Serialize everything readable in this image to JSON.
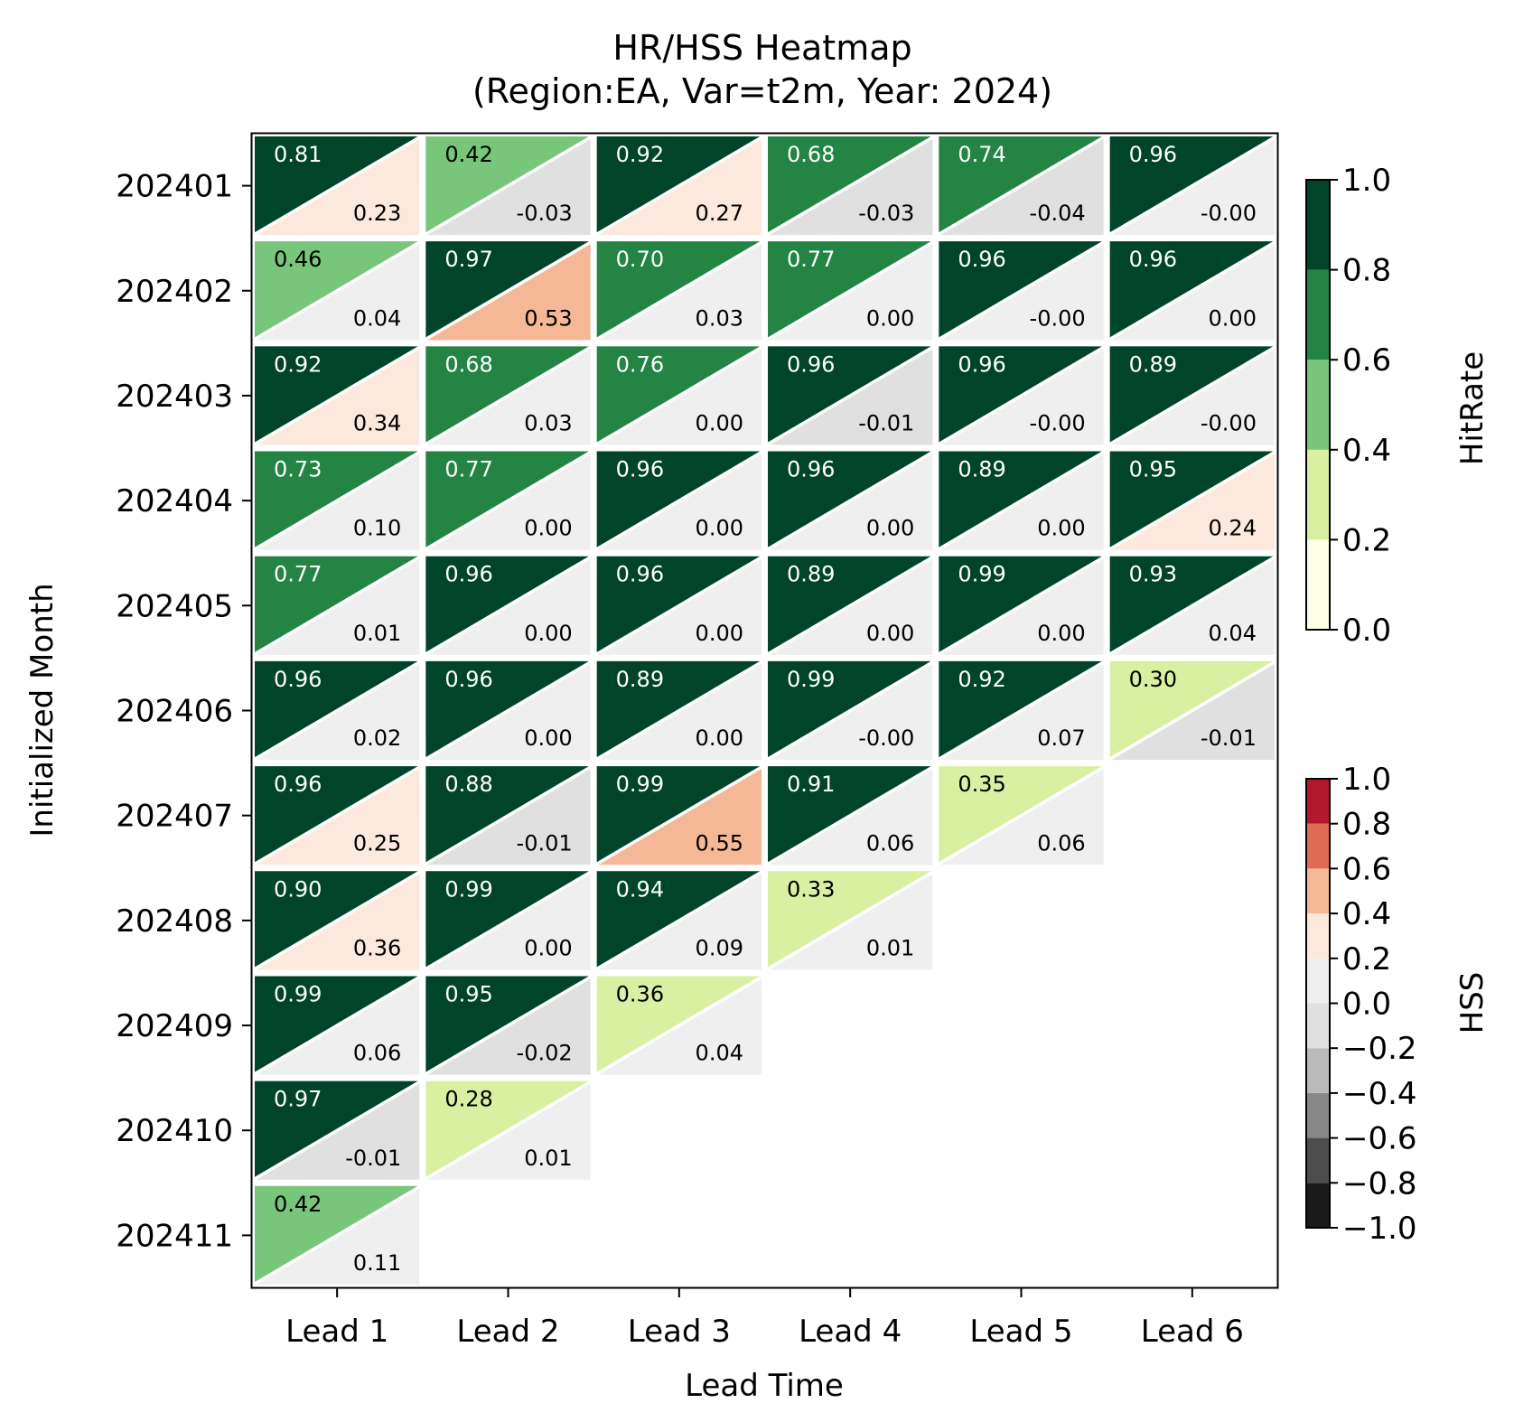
{
  "chart_data": {
    "type": "heatmap",
    "title": "HR/HSS Heatmap",
    "subtitle": "(Region:EA, Var=t2m, Year: 2024)",
    "xlabel": "Lead Time",
    "ylabel": "Initialized Month",
    "x_categories": [
      "Lead 1",
      "Lead 2",
      "Lead 3",
      "Lead 4",
      "Lead 5",
      "Lead 6"
    ],
    "y_categories": [
      "202401",
      "202402",
      "202403",
      "202404",
      "202405",
      "202406",
      "202407",
      "202408",
      "202409",
      "202410",
      "202411"
    ],
    "hitrate": [
      [
        0.81,
        0.42,
        0.92,
        0.68,
        0.74,
        0.96
      ],
      [
        0.46,
        0.97,
        0.7,
        0.77,
        0.96,
        0.96
      ],
      [
        0.92,
        0.68,
        0.76,
        0.96,
        0.96,
        0.89
      ],
      [
        0.73,
        0.77,
        0.96,
        0.96,
        0.89,
        0.95
      ],
      [
        0.77,
        0.96,
        0.96,
        0.89,
        0.99,
        0.93
      ],
      [
        0.96,
        0.96,
        0.89,
        0.99,
        0.92,
        0.3
      ],
      [
        0.96,
        0.88,
        0.99,
        0.91,
        0.35,
        null
      ],
      [
        0.9,
        0.99,
        0.94,
        0.33,
        null,
        null
      ],
      [
        0.99,
        0.95,
        0.36,
        null,
        null,
        null
      ],
      [
        0.97,
        0.28,
        null,
        null,
        null,
        null
      ],
      [
        0.42,
        null,
        null,
        null,
        null,
        null
      ]
    ],
    "hss_labels": [
      [
        "0.23",
        "-0.03",
        "0.27",
        "-0.03",
        "-0.04",
        "-0.00"
      ],
      [
        "0.04",
        "0.53",
        "0.03",
        "0.00",
        "-0.00",
        "0.00"
      ],
      [
        "0.34",
        "0.03",
        "0.00",
        "-0.01",
        "-0.00",
        "-0.00"
      ],
      [
        "0.10",
        "0.00",
        "0.00",
        "0.00",
        "0.00",
        "0.24"
      ],
      [
        "0.01",
        "0.00",
        "0.00",
        "0.00",
        "0.00",
        "0.04"
      ],
      [
        "0.02",
        "0.00",
        "0.00",
        "-0.00",
        "0.07",
        "-0.01"
      ],
      [
        "0.25",
        "-0.01",
        "0.55",
        "0.06",
        "0.06",
        null
      ],
      [
        "0.36",
        "0.00",
        "0.09",
        "0.01",
        null,
        null
      ],
      [
        "0.06",
        "-0.02",
        "0.04",
        null,
        null,
        null
      ],
      [
        "-0.01",
        "0.01",
        null,
        null,
        null,
        null
      ],
      [
        "0.11",
        null,
        null,
        null,
        null,
        null
      ]
    ],
    "colorbars": [
      {
        "label": "HitRate",
        "range": [
          0.0,
          1.0
        ],
        "ticks": [
          "0.0",
          "0.2",
          "0.4",
          "0.6",
          "0.8",
          "1.0"
        ],
        "bounds": [
          0.0,
          0.2,
          0.4,
          0.6,
          0.8,
          1.0
        ],
        "colors": [
          "#ffffe5",
          "#d9f0a3",
          "#78c679",
          "#238443",
          "#004529"
        ]
      },
      {
        "label": "HSS",
        "range": [
          -1.0,
          1.0
        ],
        "ticks": [
          "−1.0",
          "−0.8",
          "−0.6",
          "−0.4",
          "−0.2",
          "0.0",
          "0.2",
          "0.4",
          "0.6",
          "0.8",
          "1.0"
        ],
        "bounds": [
          -1.0,
          -0.8,
          -0.6,
          -0.4,
          -0.2,
          0.0,
          0.2,
          0.4,
          0.6,
          0.8,
          1.0
        ],
        "colors": [
          "#1a1a1a",
          "#4d4d4d",
          "#878787",
          "#bababa",
          "#e0e0e0",
          "#efefef",
          "#fde8dd",
          "#f4b896",
          "#e06c56",
          "#b2182b",
          "#67001f"
        ]
      }
    ],
    "grid": false
  }
}
